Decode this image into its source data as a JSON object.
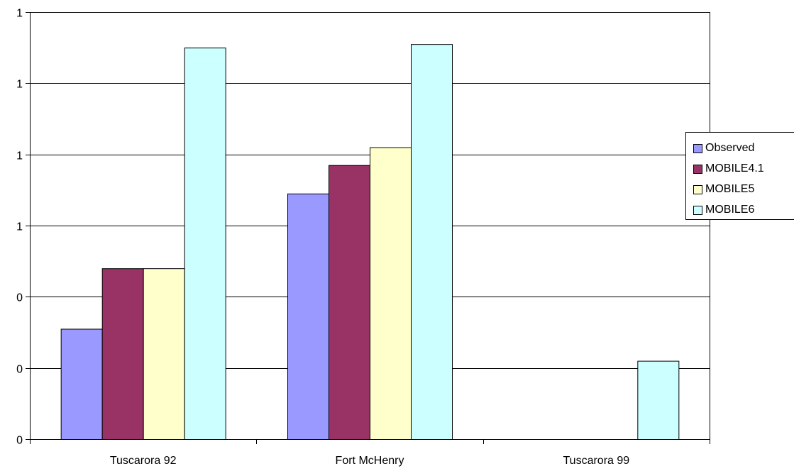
{
  "chart_data": {
    "type": "bar",
    "title": "",
    "xlabel": "",
    "ylabel": "",
    "categories": [
      "Tuscarora 92",
      "Fort McHenry",
      "Tuscarora 99"
    ],
    "ylim": [
      0,
      1.2
    ],
    "y_tick_values": [
      0,
      0.2,
      0.4,
      0.6,
      0.8,
      1.0,
      1.2
    ],
    "y_tick_labels": [
      "0",
      "0",
      "0",
      "1",
      "1",
      "1",
      "1"
    ],
    "grid": true,
    "legend_position": "right",
    "series": [
      {
        "name": "Observed",
        "color": "#9999ff",
        "values": [
          0.31,
          0.69,
          0
        ]
      },
      {
        "name": "MOBILE4.1",
        "color": "#993366",
        "values": [
          0.48,
          0.77,
          0
        ]
      },
      {
        "name": "MOBILE5",
        "color": "#ffffcc",
        "values": [
          0.48,
          0.82,
          0
        ]
      },
      {
        "name": "MOBILE6",
        "color": "#ccffff",
        "values": [
          1.1,
          1.11,
          0.22
        ]
      }
    ]
  }
}
